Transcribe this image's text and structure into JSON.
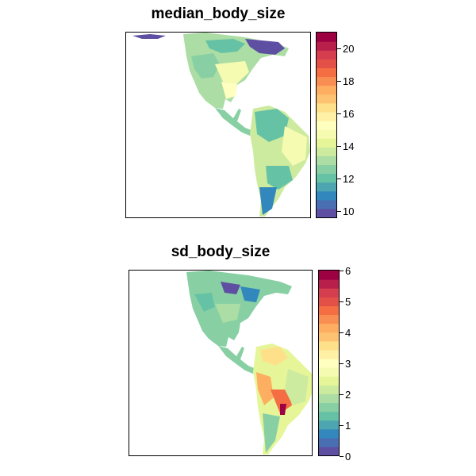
{
  "panels": [
    {
      "title": "median_body_size",
      "legend_ticks": [
        "10",
        "12",
        "14",
        "16",
        "18",
        "20"
      ],
      "legend_range": [
        9.6,
        21.0
      ]
    },
    {
      "title": "sd_body_size",
      "legend_ticks": [
        "0",
        "1",
        "2",
        "3",
        "4",
        "5",
        "6"
      ],
      "legend_range": [
        0,
        6.1
      ]
    }
  ],
  "palette": [
    "#5e4fa2",
    "#4a6eb2",
    "#3288bd",
    "#4ca5b1",
    "#66c2a5",
    "#88d0a4",
    "#abdda4",
    "#cdeb9f",
    "#e6f598",
    "#f6fbb2",
    "#ffffbf",
    "#fff0a6",
    "#fee08b",
    "#fdc272",
    "#fdae61",
    "#f88e52",
    "#f46d43",
    "#e25048",
    "#d53e4f",
    "#b8204b",
    "#9e0142"
  ]
}
